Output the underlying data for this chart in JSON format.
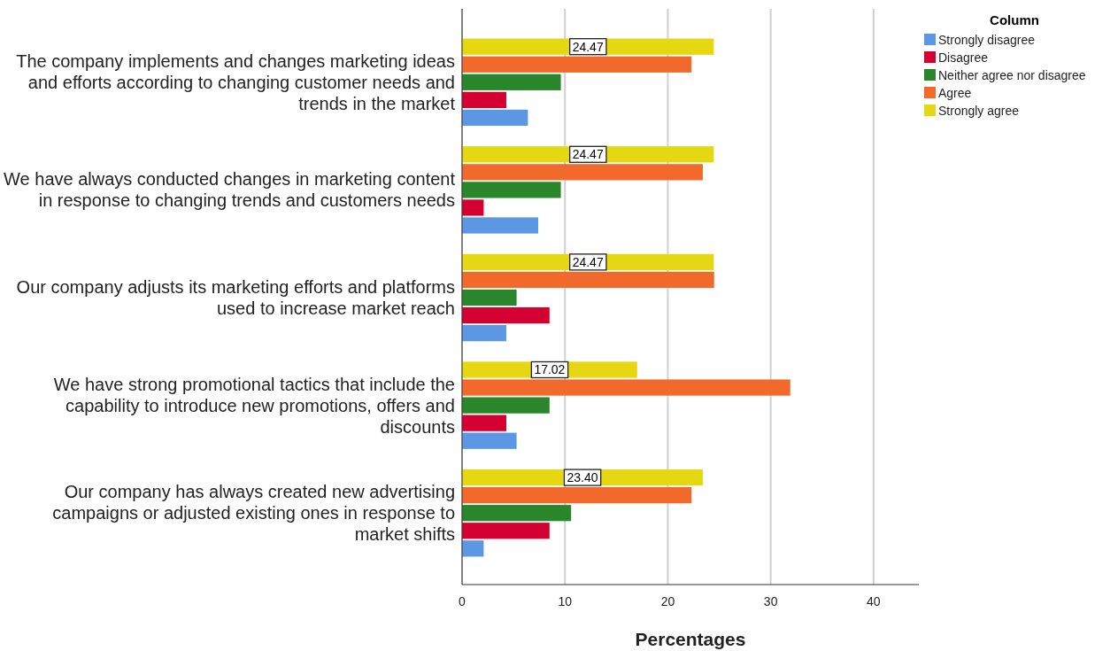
{
  "chart_data": {
    "type": "bar",
    "orientation": "horizontal",
    "xlabel": "Percentages",
    "legend_title": "Column",
    "legend": "top right",
    "grid": "x",
    "categories": [
      "The company implements and changes marketing ideas and efforts according to changing customer needs and trends in the market",
      "We have always conducted changes in marketing content in response to changing trends and customers needs",
      "Our company adjusts its marketing efforts and platforms used to increase market reach",
      "We have strong promotional tactics that include the capability to introduce new promotions, offers and discounts",
      "Our company has always created new advertising campaigns or adjusted existing ones in response to market shifts"
    ],
    "xlim": [
      0,
      44.4
    ],
    "xticks": [
      0,
      10,
      20,
      30,
      40
    ],
    "series": [
      {
        "name": "Strongly disagree",
        "color": "#5b97e3",
        "values": [
          6.4,
          7.4,
          4.3,
          5.3,
          2.1
        ]
      },
      {
        "name": "Disagree",
        "color": "#d50032",
        "values": [
          4.3,
          2.1,
          8.5,
          4.3,
          8.5
        ]
      },
      {
        "name": "Neither agree nor disagree",
        "color": "#2a862a",
        "values": [
          9.6,
          9.6,
          5.3,
          8.5,
          10.6
        ]
      },
      {
        "name": "Agree",
        "color": "#f26a2b",
        "values": [
          22.3,
          23.4,
          24.5,
          31.9,
          22.3
        ]
      },
      {
        "name": "Strongly agree",
        "color": "#e5d812",
        "values": [
          24.47,
          24.47,
          24.47,
          17.02,
          23.4
        ],
        "value_labels": [
          "24.47",
          "24.47",
          "24.47",
          "17.02",
          "23.40"
        ]
      }
    ]
  }
}
